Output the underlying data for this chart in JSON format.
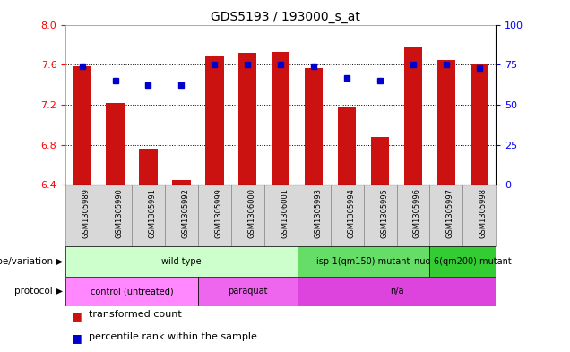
{
  "title": "GDS5193 / 193000_s_at",
  "samples": [
    "GSM1305989",
    "GSM1305990",
    "GSM1305991",
    "GSM1305992",
    "GSM1305999",
    "GSM1306000",
    "GSM1306001",
    "GSM1305993",
    "GSM1305994",
    "GSM1305995",
    "GSM1305996",
    "GSM1305997",
    "GSM1305998"
  ],
  "bar_values": [
    7.58,
    7.22,
    6.76,
    6.45,
    7.68,
    7.72,
    7.73,
    7.57,
    7.17,
    6.88,
    7.77,
    7.65,
    7.6
  ],
  "dot_values": [
    74,
    65,
    62,
    62,
    75,
    75,
    75,
    74,
    67,
    65,
    75,
    75,
    73
  ],
  "ylim_left": [
    6.4,
    8.0
  ],
  "ylim_right": [
    0,
    100
  ],
  "yticks_left": [
    6.4,
    6.8,
    7.2,
    7.6,
    8.0
  ],
  "yticks_right": [
    0,
    25,
    50,
    75,
    100
  ],
  "bar_color": "#cc1111",
  "dot_color": "#0000cc",
  "background_plot": "#ffffff",
  "background_fig": "#ffffff",
  "cell_bg": "#d8d8d8",
  "cell_border": "#888888",
  "genotype_row": {
    "label": "genotype/variation",
    "groups": [
      {
        "text": "wild type",
        "start": 0,
        "end": 6,
        "color": "#ccffcc"
      },
      {
        "text": "isp-1(qm150) mutant",
        "start": 7,
        "end": 10,
        "color": "#66dd66"
      },
      {
        "text": "nuo-6(qm200) mutant",
        "start": 11,
        "end": 12,
        "color": "#33cc33"
      }
    ]
  },
  "protocol_row": {
    "label": "protocol",
    "groups": [
      {
        "text": "control (untreated)",
        "start": 0,
        "end": 3,
        "color": "#ff88ff"
      },
      {
        "text": "paraquat",
        "start": 4,
        "end": 6,
        "color": "#ee66ee"
      },
      {
        "text": "n/a",
        "start": 7,
        "end": 12,
        "color": "#dd44dd"
      }
    ]
  },
  "legend_bar_label": "transformed count",
  "legend_dot_label": "percentile rank within the sample",
  "grid_lines": [
    6.8,
    7.2,
    7.6
  ]
}
